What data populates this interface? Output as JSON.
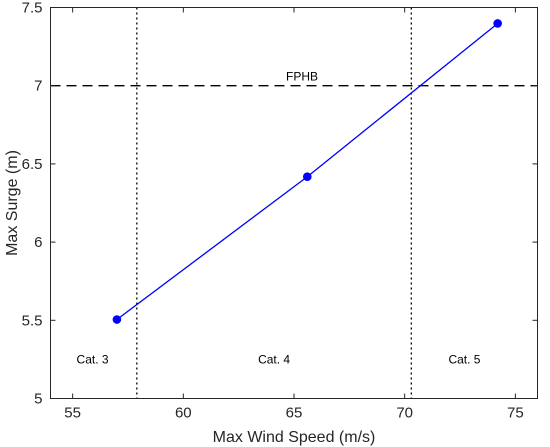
{
  "chart_data": {
    "type": "line",
    "xlabel": "Max Wind Speed (m/s)",
    "ylabel": "Max Surge (m)",
    "xlim": [
      54,
      76
    ],
    "ylim": [
      5,
      7.5
    ],
    "xticks": [
      55,
      60,
      65,
      70,
      75
    ],
    "yticks": [
      5,
      5.5,
      6,
      6.5,
      7,
      7.5
    ],
    "grid": false,
    "series": [
      {
        "x": [
          57.0,
          65.6,
          74.2
        ],
        "y": [
          5.505,
          6.418,
          7.398
        ],
        "color": "#0000ff",
        "marker": "circle"
      }
    ],
    "reference_lines": [
      {
        "orientation": "horizontal",
        "value": 7.0,
        "style": "dashed",
        "label": "FPHB",
        "color": "#000000"
      },
      {
        "orientation": "vertical",
        "value": 57.9,
        "style": "dotted",
        "color": "#000000"
      },
      {
        "orientation": "vertical",
        "value": 70.3,
        "style": "dotted",
        "color": "#000000"
      }
    ],
    "region_labels": [
      {
        "text": "Cat. 3",
        "x": 55.9,
        "y": 5.25
      },
      {
        "text": "Cat. 4",
        "x": 64.1,
        "y": 5.25
      },
      {
        "text": "Cat. 5",
        "x": 72.7,
        "y": 5.25
      }
    ]
  }
}
